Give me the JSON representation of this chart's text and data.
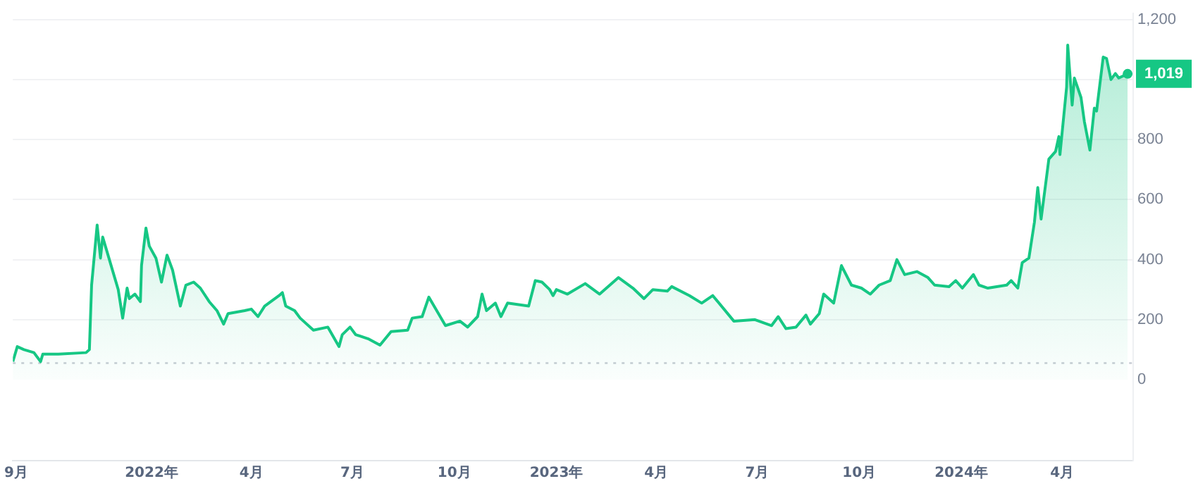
{
  "chart_data": {
    "type": "area",
    "x": [
      "2021-08-29",
      "2021-09-02",
      "2021-09-08",
      "2021-09-17",
      "2021-09-23",
      "2021-09-25",
      "2021-10-09",
      "2021-11-03",
      "2021-11-06",
      "2021-11-08",
      "2021-11-13",
      "2021-11-16",
      "2021-11-18",
      "2021-11-22",
      "2021-11-28",
      "2021-12-02",
      "2021-12-06",
      "2021-12-10",
      "2021-12-12",
      "2021-12-17",
      "2021-12-22",
      "2021-12-23",
      "2021-12-27",
      "2021-12-30",
      "2022-01-05",
      "2022-01-10",
      "2022-01-15",
      "2022-01-20",
      "2022-01-27",
      "2022-02-01",
      "2022-02-08",
      "2022-02-14",
      "2022-02-22",
      "2022-03-01",
      "2022-03-07",
      "2022-03-11",
      "2022-03-26",
      "2022-04-01",
      "2022-04-07",
      "2022-04-13",
      "2022-04-26",
      "2022-04-29",
      "2022-05-02",
      "2022-05-10",
      "2022-05-15",
      "2022-05-27",
      "2022-06-09",
      "2022-06-19",
      "2022-06-22",
      "2022-06-29",
      "2022-07-04",
      "2022-07-16",
      "2022-07-26",
      "2022-08-05",
      "2022-08-20",
      "2022-08-24",
      "2022-09-02",
      "2022-09-08",
      "2022-09-23",
      "2022-10-06",
      "2022-10-13",
      "2022-10-22",
      "2022-10-26",
      "2022-10-30",
      "2022-11-07",
      "2022-11-12",
      "2022-11-18",
      "2022-12-07",
      "2022-12-13",
      "2022-12-19",
      "2022-12-26",
      "2022-12-29",
      "2023-01-01",
      "2023-01-11",
      "2023-01-27",
      "2023-02-09",
      "2023-02-26",
      "2023-03-11",
      "2023-03-21",
      "2023-03-29",
      "2023-04-11",
      "2023-04-15",
      "2023-05-01",
      "2023-05-12",
      "2023-05-22",
      "2023-06-10",
      "2023-06-29",
      "2023-07-14",
      "2023-07-20",
      "2023-07-27",
      "2023-08-05",
      "2023-08-14",
      "2023-08-18",
      "2023-08-26",
      "2023-08-30",
      "2023-09-08",
      "2023-09-15",
      "2023-09-24",
      "2023-10-03",
      "2023-10-11",
      "2023-10-19",
      "2023-10-29",
      "2023-11-04",
      "2023-11-11",
      "2023-11-22",
      "2023-12-02",
      "2023-12-08",
      "2023-12-21",
      "2023-12-27",
      "2024-01-02",
      "2024-01-12",
      "2024-01-17",
      "2024-01-25",
      "2024-02-11",
      "2024-02-15",
      "2024-02-21",
      "2024-02-25",
      "2024-03-02",
      "2024-03-07",
      "2024-03-10",
      "2024-03-13",
      "2024-03-20",
      "2024-03-26",
      "2024-03-29",
      "2024-03-30",
      "2024-04-05",
      "2024-04-06",
      "2024-04-10",
      "2024-04-12",
      "2024-04-18",
      "2024-04-21",
      "2024-04-26",
      "2024-04-30",
      "2024-05-02",
      "2024-05-08",
      "2024-05-11",
      "2024-05-15",
      "2024-05-19",
      "2024-05-22",
      "2024-05-30"
    ],
    "series": [
      {
        "color": "#16c784",
        "values": [
          60,
          110,
          100,
          90,
          60,
          85,
          85,
          90,
          100,
          315,
          515,
          405,
          475,
          425,
          350,
          300,
          205,
          305,
          270,
          285,
          260,
          380,
          505,
          445,
          405,
          325,
          415,
          365,
          245,
          315,
          325,
          305,
          260,
          230,
          185,
          220,
          230,
          235,
          210,
          245,
          280,
          290,
          245,
          230,
          205,
          165,
          175,
          110,
          150,
          175,
          150,
          135,
          115,
          160,
          165,
          205,
          210,
          275,
          180,
          195,
          175,
          210,
          285,
          230,
          255,
          210,
          255,
          245,
          330,
          325,
          300,
          280,
          300,
          285,
          320,
          285,
          340,
          305,
          270,
          300,
          295,
          310,
          280,
          255,
          280,
          195,
          200,
          180,
          210,
          170,
          175,
          215,
          185,
          220,
          285,
          255,
          380,
          315,
          305,
          285,
          315,
          330,
          400,
          350,
          360,
          340,
          315,
          310,
          330,
          305,
          350,
          315,
          305,
          315,
          330,
          305,
          390,
          405,
          525,
          640,
          535,
          735,
          760,
          810,
          750,
          975,
          1115,
          915,
          1005,
          940,
          860,
          765,
          905,
          895,
          1075,
          1070,
          1000,
          1020,
          1005,
          1019
        ]
      }
    ],
    "xlim": [
      "2021-08-29",
      "2024-06-04"
    ],
    "xticks": [
      {
        "value": "2021-09-01",
        "label": "9月"
      },
      {
        "value": "2022-01-01",
        "label": "2022年"
      },
      {
        "value": "2022-04-01",
        "label": "4月"
      },
      {
        "value": "2022-07-01",
        "label": "7月"
      },
      {
        "value": "2022-10-01",
        "label": "10月"
      },
      {
        "value": "2023-01-01",
        "label": "2023年"
      },
      {
        "value": "2023-04-01",
        "label": "4月"
      },
      {
        "value": "2023-07-01",
        "label": "7月"
      },
      {
        "value": "2023-10-01",
        "label": "10月"
      },
      {
        "value": "2024-01-01",
        "label": "2024年"
      },
      {
        "value": "2024-04-01",
        "label": "4月"
      }
    ],
    "ylim": [
      -270,
      1220
    ],
    "yticks": [
      {
        "value": 0,
        "label": "0"
      },
      {
        "value": 200,
        "label": "200"
      },
      {
        "value": 400,
        "label": "400"
      },
      {
        "value": 600,
        "label": "600"
      },
      {
        "value": 800,
        "label": "800"
      },
      {
        "value": 1000,
        "label": null
      },
      {
        "value": 1200,
        "label": "1,200"
      }
    ],
    "grid": "y",
    "ref_lines": [
      {
        "axis": "y",
        "value": 55,
        "color": "#c8ccd4",
        "line_style": "dotted"
      }
    ],
    "annotations": [
      {
        "text": "1,019",
        "x": "2024-05-30",
        "y": 1019
      }
    ]
  }
}
